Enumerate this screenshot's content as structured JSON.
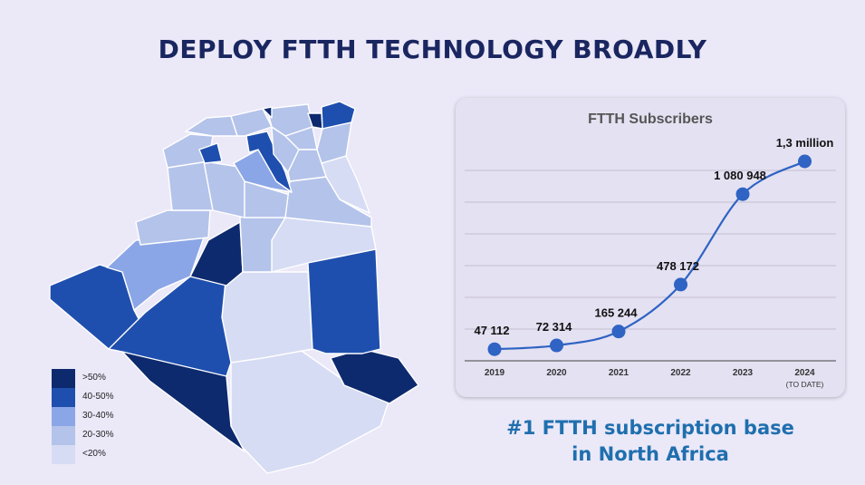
{
  "page": {
    "title": "DEPLOY FTTH TECHNOLOGY BROADLY"
  },
  "map": {
    "legend": [
      {
        "label": ">50%",
        "color": "#0e2a6e"
      },
      {
        "label": "40-50%",
        "color": "#1f4fae"
      },
      {
        "label": "30-40%",
        "color": "#8ba6e6"
      },
      {
        "label": "20-30%",
        "color": "#b4c3ea"
      },
      {
        "label": "<20%",
        "color": "#d6dcf3"
      }
    ]
  },
  "chart_data": {
    "type": "line",
    "title": "FTTH Subscribers",
    "categories": [
      "2019",
      "2020",
      "2021",
      "2022",
      "2023",
      "2024"
    ],
    "category_sublabels": [
      "",
      "",
      "",
      "",
      "",
      "(TO DATE)"
    ],
    "values": [
      47112,
      72314,
      165244,
      478172,
      1080948,
      1300000
    ],
    "value_labels": [
      "47 112",
      "72 314",
      "165 244",
      "478 172",
      "1 080 948",
      "1,3 million"
    ],
    "grid": true,
    "line_color": "#2f63c4"
  },
  "tagline": {
    "line1": "#1 FTTH subscription base",
    "line2": "in North Africa"
  }
}
